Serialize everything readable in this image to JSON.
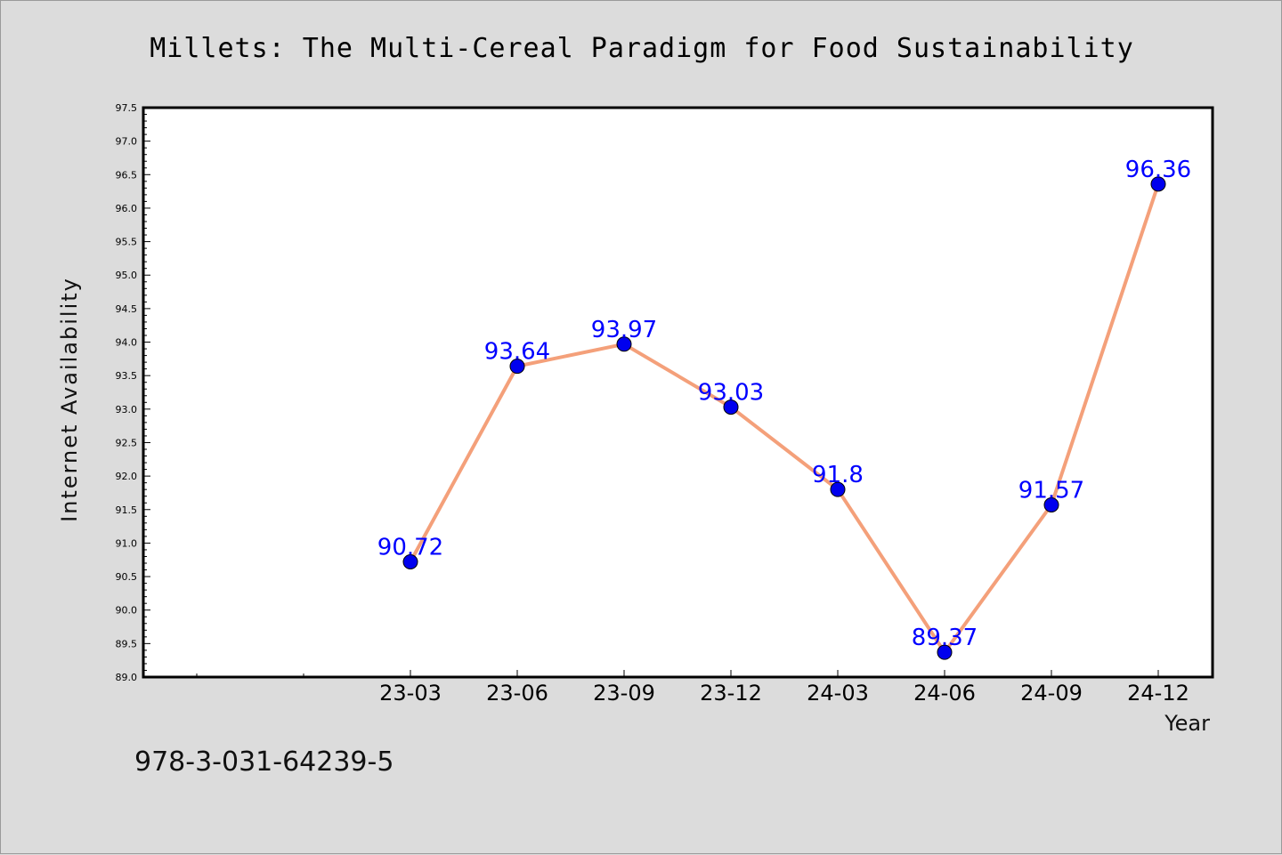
{
  "footer": {
    "text": "978-3-031-64239-5"
  },
  "colors": {
    "line": "#f4a07a",
    "marker": "#0000ee",
    "label": "#0000ff",
    "plot_bg": "#ffffff",
    "page_bg": "#dcdcdc"
  },
  "chart_data": {
    "type": "line",
    "title": "Millets: The Multi-Cereal Paradigm for Food Sustainability",
    "xlabel": "Year",
    "ylabel": "Internet Availability",
    "categories": [
      "23-03",
      "23-06",
      "23-09",
      "23-12",
      "24-03",
      "24-06",
      "24-09",
      "24-12"
    ],
    "series": [
      {
        "values": [
          90.72,
          93.64,
          93.97,
          93.03,
          91.8,
          89.37,
          91.57,
          96.36
        ]
      }
    ],
    "data_labels": [
      "90.72",
      "93.64",
      "93.97",
      "93.03",
      "91.8",
      "89.37",
      "91.57",
      "96.36"
    ],
    "ylim": [
      89.0,
      97.5
    ],
    "yticks": [
      89.0,
      89.5,
      90.0,
      90.5,
      91.0,
      91.5,
      92.0,
      92.5,
      93.0,
      93.5,
      94.0,
      94.5,
      95.0,
      95.5,
      96.0,
      96.5,
      97.0,
      97.5
    ],
    "ytick_labels": [
      "89.0",
      "89.5",
      "90.0",
      "90.5",
      "91.0",
      "91.5",
      "92.0",
      "92.5",
      "93.0",
      "93.5",
      "94.0",
      "94.5",
      "95.0",
      "95.5",
      "96.0",
      "96.5",
      "97.0",
      "97.5"
    ],
    "grid": false,
    "legend": "none"
  }
}
